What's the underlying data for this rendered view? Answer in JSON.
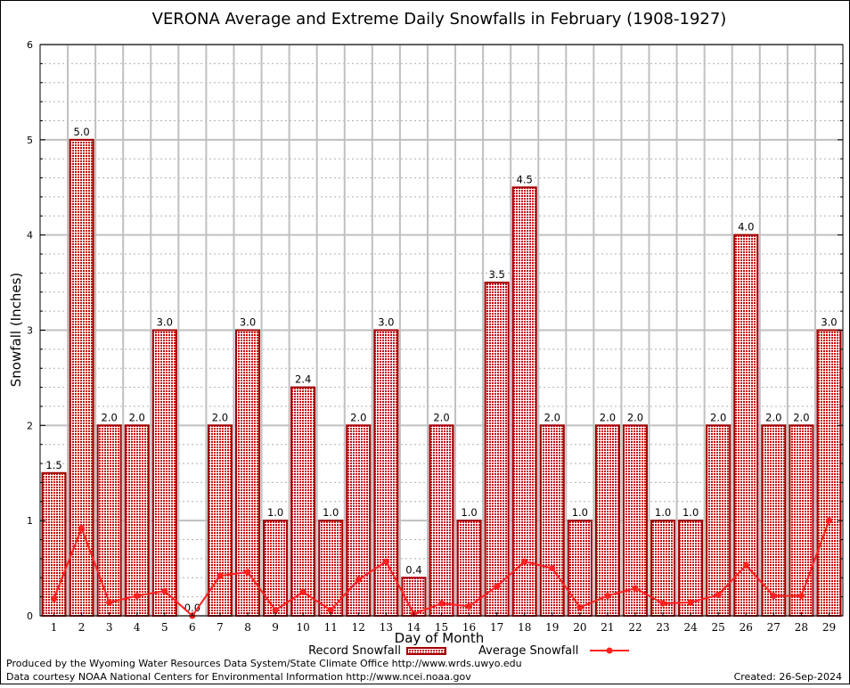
{
  "chart_data": {
    "type": "bar",
    "title": "VERONA Average and Extreme Daily Snowfalls in February (1908-1927)",
    "xlabel": "Day of Month",
    "ylabel": "Snowfall (Inches)",
    "ylim": [
      0,
      6
    ],
    "yticks": [
      "0",
      "1",
      "2",
      "3",
      "4",
      "5",
      "6"
    ],
    "grid": true,
    "legend_placement": "bottom",
    "categories": [
      "1",
      "2",
      "3",
      "4",
      "5",
      "6",
      "7",
      "8",
      "9",
      "10",
      "11",
      "12",
      "13",
      "14",
      "15",
      "16",
      "17",
      "18",
      "19",
      "20",
      "21",
      "22",
      "23",
      "24",
      "25",
      "26",
      "27",
      "28",
      "29"
    ],
    "series": [
      {
        "name": "Record Snowfall",
        "type": "bar",
        "color": "#a00000",
        "values": [
          1.5,
          5.0,
          2.0,
          2.0,
          3.0,
          0.0,
          2.0,
          3.0,
          1.0,
          2.4,
          1.0,
          2.0,
          3.0,
          0.4,
          2.0,
          1.0,
          3.5,
          4.5,
          2.0,
          1.0,
          2.0,
          2.0,
          1.0,
          1.0,
          2.0,
          4.0,
          2.0,
          2.0,
          3.0
        ],
        "labels": [
          "1.5",
          "5.0",
          "2.0",
          "2.0",
          "3.0",
          "0.0",
          "2.0",
          "3.0",
          "1.0",
          "2.4",
          "1.0",
          "2.0",
          "3.0",
          "0.4",
          "2.0",
          "1.0",
          "3.5",
          "4.5",
          "2.0",
          "1.0",
          "2.0",
          "2.0",
          "1.0",
          "1.0",
          "2.0",
          "4.0",
          "2.0",
          "2.0",
          "3.0"
        ]
      },
      {
        "name": "Average Snowfall",
        "type": "line",
        "color": "#ff2020",
        "values": [
          0.18,
          0.92,
          0.14,
          0.21,
          0.26,
          0.0,
          0.42,
          0.46,
          0.06,
          0.25,
          0.06,
          0.38,
          0.57,
          0.02,
          0.13,
          0.1,
          0.31,
          0.57,
          0.5,
          0.09,
          0.21,
          0.29,
          0.13,
          0.14,
          0.22,
          0.53,
          0.21,
          0.21,
          1.0
        ]
      }
    ]
  },
  "footer": {
    "credit1": "Produced by the Wyoming Water Resources Data System/State Climate Office http://www.wrds.uwyo.edu",
    "credit2": "Data courtesy NOAA National Centers for Environmental Information http://www.ncei.noaa.gov",
    "created": "Created: 26-Sep-2024"
  }
}
